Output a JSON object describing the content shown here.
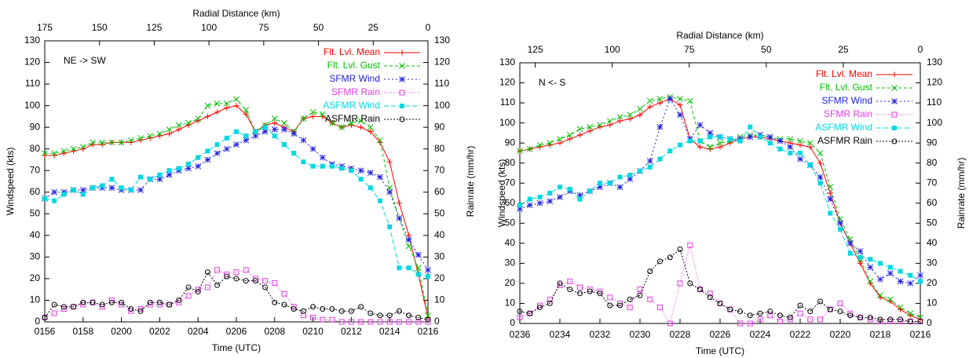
{
  "chart_data": [
    {
      "type": "line",
      "annotation": "NE -> SW",
      "xlabel": "Time (UTC)",
      "x2label": "Radial Distance (km)",
      "ylabel": "Windspeed (kts)",
      "y2label": "Rainrate (mm/hr)",
      "legend": "upper right",
      "xlim": [
        116,
        136
      ],
      "xticks": [
        {
          "value": 116,
          "label": "0156"
        },
        {
          "value": 118,
          "label": "0158"
        },
        {
          "value": 120,
          "label": "0200"
        },
        {
          "value": 122,
          "label": "0202"
        },
        {
          "value": 124,
          "label": "0204"
        },
        {
          "value": 126,
          "label": "0206"
        },
        {
          "value": 128,
          "label": "0208"
        },
        {
          "value": 130,
          "label": "0210"
        },
        {
          "value": 132,
          "label": "0212"
        },
        {
          "value": 134,
          "label": "0214"
        },
        {
          "value": 136,
          "label": "0216"
        }
      ],
      "x2lim": [
        175,
        0
      ],
      "x2ticks": [
        175,
        150,
        125,
        100,
        75,
        50,
        25,
        0
      ],
      "ylim": [
        0,
        130
      ],
      "yticks": [
        0,
        10,
        20,
        30,
        40,
        50,
        60,
        70,
        80,
        90,
        100,
        110,
        120,
        130
      ],
      "y2lim": [
        0,
        130
      ],
      "y2ticks": [
        0,
        10,
        20,
        30,
        40,
        50,
        60,
        70,
        80,
        90,
        100,
        110,
        120,
        130
      ],
      "x": [
        116,
        116.5,
        117,
        117.5,
        118,
        118.5,
        119,
        119.5,
        120,
        120.5,
        121,
        121.5,
        122,
        122.5,
        123,
        123.5,
        124,
        124.5,
        125,
        125.5,
        126,
        126.5,
        127,
        127.5,
        128,
        128.5,
        129,
        129.5,
        130,
        130.5,
        131,
        131.5,
        132,
        132.5,
        133,
        133.5,
        134,
        134.5,
        135,
        135.5,
        136
      ],
      "series": [
        {
          "name": "Flt. Lvl. Mean",
          "color": "#ff0000",
          "values": [
            77,
            77,
            78,
            79,
            80,
            82,
            82,
            83,
            83,
            83,
            84,
            85,
            86,
            87,
            89,
            91,
            93,
            95,
            97,
            99,
            100,
            96,
            88,
            91,
            92,
            90,
            88,
            94,
            95,
            95,
            92,
            90,
            91,
            90,
            88,
            83,
            74,
            55,
            40,
            22,
            2
          ]
        },
        {
          "name": "Flt. Lvl. Gust",
          "color": "#00c000",
          "values": [
            78,
            78,
            79,
            80,
            81,
            83,
            83,
            83,
            83,
            84,
            85,
            86,
            87,
            89,
            91,
            92,
            94,
            100,
            101,
            101,
            103,
            98,
            88,
            91,
            94,
            92,
            88,
            94,
            97,
            96,
            92,
            90,
            92,
            93,
            90,
            84,
            62,
            48,
            35,
            25,
            3
          ]
        },
        {
          "name": "SFMR Wind",
          "color": "#2020e0",
          "values": [
            57,
            60,
            60,
            61,
            61,
            62,
            62,
            62,
            61,
            61,
            61,
            66,
            66,
            68,
            70,
            71,
            72,
            75,
            78,
            80,
            82,
            84,
            86,
            88,
            89,
            89,
            87,
            84,
            80,
            76,
            73,
            72,
            71,
            70,
            69,
            67,
            60,
            48,
            38,
            31,
            24
          ]
        },
        {
          "name": "SFMR Rain",
          "color": "#e040e0",
          "axis": "y2",
          "values": [
            2,
            4,
            6,
            7,
            8,
            9,
            7,
            10,
            8,
            5,
            6,
            8,
            8,
            8,
            9,
            12,
            15,
            16,
            24,
            22,
            23,
            24,
            20,
            19,
            18,
            13,
            7,
            3,
            2,
            1,
            1,
            0,
            0,
            0,
            0,
            0,
            0,
            0,
            0,
            0,
            0
          ]
        },
        {
          "name": "ASFMR Wind",
          "color": "#00d8e0",
          "values": [
            57,
            56,
            59,
            61,
            59,
            62,
            63,
            66,
            62,
            61,
            67,
            66,
            68,
            70,
            71,
            73,
            76,
            79,
            82,
            85,
            88,
            86,
            88,
            90,
            86,
            82,
            78,
            74,
            72,
            72,
            72,
            71,
            70,
            66,
            62,
            56,
            44,
            25,
            25,
            22,
            21
          ]
        },
        {
          "name": "ASFMR Rain",
          "color": "#000000",
          "axis": "y2",
          "values": [
            2,
            8,
            7,
            7,
            9,
            9,
            8,
            9,
            9,
            6,
            5,
            9,
            9,
            8,
            10,
            16,
            14,
            23,
            17,
            21,
            20,
            19,
            19,
            16,
            9,
            8,
            6,
            5,
            7,
            6,
            6,
            5,
            5,
            7,
            4,
            3,
            3,
            5,
            3,
            2,
            1
          ]
        }
      ]
    },
    {
      "type": "line",
      "annotation": "N <- S",
      "xlabel": "Time (UTC)",
      "x2label": "Radial Distance (km)",
      "ylabel": "Windspeed (kts)",
      "y2label": "Rainrate (mm/hr)",
      "legend": "upper right",
      "xlim": [
        156,
        136
      ],
      "xticks": [
        {
          "value": 156,
          "label": "0236"
        },
        {
          "value": 154,
          "label": "0234"
        },
        {
          "value": 152,
          "label": "0232"
        },
        {
          "value": 150,
          "label": "0230"
        },
        {
          "value": 148,
          "label": "0228"
        },
        {
          "value": 146,
          "label": "0226"
        },
        {
          "value": 144,
          "label": "0224"
        },
        {
          "value": 142,
          "label": "0222"
        },
        {
          "value": 140,
          "label": "0220"
        },
        {
          "value": 138,
          "label": "0218"
        },
        {
          "value": 136,
          "label": "0216"
        }
      ],
      "x2lim": [
        130,
        0
      ],
      "x2ticks": [
        125,
        100,
        75,
        50,
        25,
        0
      ],
      "ylim": [
        0,
        130
      ],
      "yticks": [
        0,
        10,
        20,
        30,
        40,
        50,
        60,
        70,
        80,
        90,
        100,
        110,
        120,
        130
      ],
      "y2lim": [
        0,
        130
      ],
      "y2ticks": [
        0,
        10,
        20,
        30,
        40,
        50,
        60,
        70,
        80,
        90,
        100,
        110,
        120,
        130
      ],
      "x": [
        156,
        155.5,
        155,
        154.5,
        154,
        153.5,
        153,
        152.5,
        152,
        151.5,
        151,
        150.5,
        150,
        149.5,
        149,
        148.5,
        148,
        147.5,
        147,
        146.5,
        146,
        145.5,
        145,
        144.5,
        144,
        143.5,
        143,
        142.5,
        142,
        141.5,
        141,
        140.5,
        140,
        139.5,
        139,
        138.5,
        138,
        137.5,
        137,
        136.5,
        136
      ],
      "series": [
        {
          "name": "Flt. Lvl. Mean",
          "color": "#ff0000",
          "values": [
            86,
            87,
            88,
            89,
            90,
            92,
            94,
            96,
            98,
            99,
            101,
            102,
            104,
            108,
            110,
            112,
            109,
            92,
            88,
            87,
            88,
            90,
            92,
            93,
            93,
            92,
            91,
            90,
            89,
            88,
            80,
            65,
            50,
            40,
            30,
            20,
            13,
            11,
            7,
            4,
            2
          ]
        },
        {
          "name": "Flt. Lvl. Gust",
          "color": "#00c000",
          "values": [
            86,
            87,
            89,
            90,
            92,
            94,
            97,
            98,
            99,
            101,
            103,
            104,
            107,
            111,
            112,
            113,
            112,
            111,
            91,
            88,
            90,
            91,
            93,
            94,
            94,
            93,
            92,
            92,
            91,
            90,
            85,
            68,
            52,
            42,
            32,
            21,
            14,
            12,
            8,
            5,
            3
          ]
        },
        {
          "name": "SFMR Wind",
          "color": "#2020e0",
          "values": [
            57,
            59,
            60,
            61,
            63,
            66,
            64,
            66,
            68,
            70,
            68,
            72,
            76,
            81,
            98,
            112,
            104,
            92,
            99,
            95,
            93,
            92,
            92,
            93,
            94,
            93,
            91,
            88,
            82,
            79,
            73,
            62,
            50,
            40,
            36,
            28,
            22,
            25,
            21,
            20,
            24
          ]
        },
        {
          "name": "SFMR Rain",
          "color": "#e040e0",
          "axis": "y2",
          "values": [
            3,
            5,
            9,
            12,
            19,
            21,
            18,
            17,
            16,
            13,
            10,
            8,
            17,
            12,
            8,
            0,
            20,
            39,
            17,
            15,
            10,
            7,
            0,
            0,
            2,
            4,
            1,
            2,
            5,
            2,
            2,
            7,
            10,
            5,
            3,
            2,
            1,
            1,
            1,
            1,
            1
          ]
        },
        {
          "name": "ASFMR Wind",
          "color": "#00d8e0",
          "values": [
            59,
            62,
            63,
            65,
            68,
            67,
            62,
            66,
            70,
            70,
            73,
            74,
            76,
            78,
            82,
            86,
            89,
            91,
            91,
            93,
            93,
            92,
            91,
            98,
            93,
            90,
            87,
            85,
            85,
            79,
            70,
            55,
            47,
            35,
            33,
            32,
            30,
            28,
            26,
            24,
            21
          ]
        },
        {
          "name": "ASFMR Rain",
          "color": "#000000",
          "axis": "y2",
          "values": [
            6,
            5,
            8,
            10,
            20,
            17,
            15,
            16,
            15,
            9,
            9,
            12,
            14,
            26,
            31,
            33,
            37,
            20,
            17,
            13,
            10,
            7,
            6,
            4,
            5,
            6,
            4,
            3,
            9,
            6,
            11,
            7,
            6,
            4,
            3,
            3,
            2,
            2,
            2,
            1,
            1
          ]
        }
      ]
    }
  ]
}
